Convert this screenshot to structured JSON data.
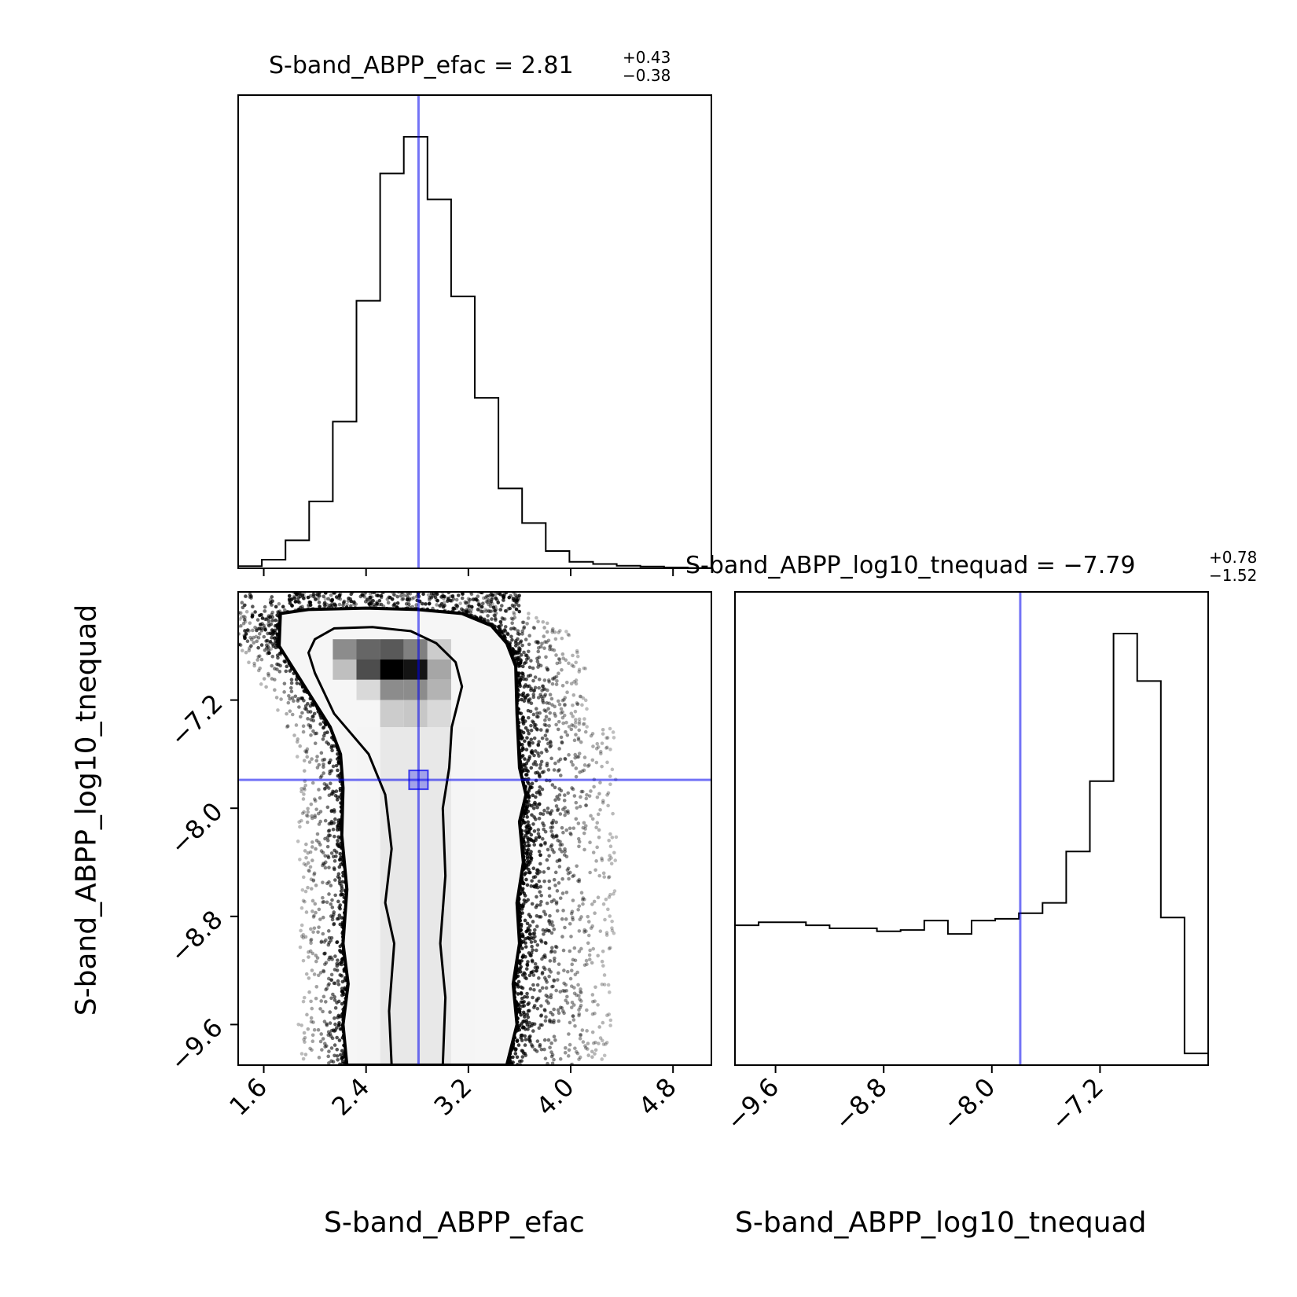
{
  "chart_data": {
    "type": "corner",
    "parameters": [
      "S-band_ABPP_efac",
      "S-band_ABPP_log10_tnequad"
    ],
    "colors": {
      "truth": "#0000ee",
      "hist": "#000000"
    },
    "panels": [
      {
        "name": "S-band_ABPP_efac-marginal",
        "type": "histogram-step",
        "title": {
          "label": "S-band_ABPP_efac = 2.81",
          "upper": "+0.43",
          "lower": "−0.38"
        },
        "xlim": [
          1.4,
          5.1
        ],
        "truth": 2.81,
        "bin_edges": [
          1.4,
          1.585,
          1.77,
          1.955,
          2.14,
          2.325,
          2.51,
          2.695,
          2.88,
          3.065,
          3.25,
          3.435,
          3.62,
          3.805,
          3.99,
          4.175,
          4.36,
          4.545,
          4.73,
          4.915,
          5.1
        ],
        "counts": [
          5,
          20,
          65,
          155,
          340,
          620,
          915,
          1000,
          855,
          630,
          395,
          185,
          105,
          40,
          15,
          10,
          6,
          4,
          2,
          1
        ]
      },
      {
        "name": "S-band_ABPP_log10_tnequad-marginal",
        "type": "histogram-step",
        "title": {
          "label": "S-band_ABPP_log10_tnequad = −7.79",
          "upper": "+0.78",
          "lower": "−1.52"
        },
        "xlim": [
          -9.9,
          -6.4
        ],
        "xticks": [
          -9.6,
          -8.8,
          -8.0,
          -7.2
        ],
        "xticklabels": [
          "−9.6",
          "−8.8",
          "−8.0",
          "−7.2"
        ],
        "xlabel": "S-band_ABPP_log10_tnequad",
        "truth": -7.79,
        "bin_edges": [
          -9.9,
          -9.725,
          -9.55,
          -9.375,
          -9.2,
          -9.025,
          -8.85,
          -8.675,
          -8.5,
          -8.325,
          -8.15,
          -7.975,
          -7.8,
          -7.625,
          -7.45,
          -7.275,
          -7.1,
          -6.925,
          -6.75,
          -6.575,
          -6.4
        ],
        "counts": [
          324,
          331,
          331,
          324,
          317,
          317,
          310,
          313,
          335,
          304,
          335,
          339,
          352,
          376,
          495,
          658,
          1000,
          890,
          342,
          27
        ]
      },
      {
        "name": "joint-2d",
        "type": "2d-density",
        "xlim": [
          1.4,
          5.1
        ],
        "ylim": [
          -9.9,
          -6.4
        ],
        "xticks": [
          1.6,
          2.4,
          3.2,
          4.0,
          4.8
        ],
        "xticklabels": [
          "1.6",
          "2.4",
          "3.2",
          "4.0",
          "4.8"
        ],
        "yticks": [
          -9.6,
          -8.8,
          -8.0,
          -7.2
        ],
        "yticklabels": [
          "−9.6",
          "−8.8",
          "−8.0",
          "−7.2"
        ],
        "xlabel": "S-band_ABPP_efac",
        "ylabel": "S-band_ABPP_log10_tnequad",
        "truth": [
          2.81,
          -7.79
        ],
        "contour_outer": [
          [
            1.73,
            -6.56
          ],
          [
            1.95,
            -6.53
          ],
          [
            2.4,
            -6.52
          ],
          [
            2.8,
            -6.53
          ],
          [
            3.15,
            -6.56
          ],
          [
            3.38,
            -6.65
          ],
          [
            3.5,
            -6.78
          ],
          [
            3.57,
            -6.95
          ],
          [
            3.58,
            -7.3
          ],
          [
            3.6,
            -7.7
          ],
          [
            3.65,
            -7.9
          ],
          [
            3.6,
            -8.1
          ],
          [
            3.63,
            -8.4
          ],
          [
            3.58,
            -8.7
          ],
          [
            3.6,
            -9.0
          ],
          [
            3.55,
            -9.3
          ],
          [
            3.58,
            -9.6
          ],
          [
            3.5,
            -9.9
          ],
          [
            2.25,
            -9.9
          ],
          [
            2.22,
            -9.6
          ],
          [
            2.26,
            -9.3
          ],
          [
            2.22,
            -9.0
          ],
          [
            2.25,
            -8.6
          ],
          [
            2.21,
            -8.2
          ],
          [
            2.22,
            -7.85
          ],
          [
            2.2,
            -7.6
          ],
          [
            2.12,
            -7.4
          ],
          [
            1.92,
            -7.1
          ],
          [
            1.72,
            -6.8
          ]
        ],
        "contour_inner": [
          [
            2.0,
            -6.75
          ],
          [
            2.15,
            -6.67
          ],
          [
            2.45,
            -6.66
          ],
          [
            2.75,
            -6.69
          ],
          [
            2.95,
            -6.78
          ],
          [
            3.1,
            -6.92
          ],
          [
            3.15,
            -7.1
          ],
          [
            3.07,
            -7.4
          ],
          [
            3.05,
            -7.7
          ],
          [
            3.0,
            -8.0
          ],
          [
            3.02,
            -8.5
          ],
          [
            2.98,
            -9.0
          ],
          [
            3.02,
            -9.4
          ],
          [
            3.0,
            -9.9
          ],
          [
            2.6,
            -9.9
          ],
          [
            2.58,
            -9.5
          ],
          [
            2.62,
            -9.0
          ],
          [
            2.55,
            -8.7
          ],
          [
            2.6,
            -8.3
          ],
          [
            2.55,
            -7.9
          ],
          [
            2.42,
            -7.6
          ],
          [
            2.15,
            -7.3
          ],
          [
            2.0,
            -7.0
          ],
          [
            1.95,
            -6.85
          ]
        ],
        "density_bins": [
          {
            "x0": 2.14,
            "x1": 2.325,
            "y0": -6.9,
            "y1": -6.75,
            "level": 0.45
          },
          {
            "x0": 2.325,
            "x1": 2.51,
            "y0": -6.9,
            "y1": -6.75,
            "level": 0.6
          },
          {
            "x0": 2.51,
            "x1": 2.695,
            "y0": -6.9,
            "y1": -6.75,
            "level": 0.65
          },
          {
            "x0": 2.695,
            "x1": 2.88,
            "y0": -6.9,
            "y1": -6.75,
            "level": 0.5
          },
          {
            "x0": 2.88,
            "x1": 3.065,
            "y0": -6.9,
            "y1": -6.75,
            "level": 0.2
          },
          {
            "x0": 2.325,
            "x1": 2.51,
            "y0": -7.05,
            "y1": -6.9,
            "level": 0.7
          },
          {
            "x0": 2.51,
            "x1": 2.695,
            "y0": -7.05,
            "y1": -6.9,
            "level": 1.0
          },
          {
            "x0": 2.695,
            "x1": 2.88,
            "y0": -7.05,
            "y1": -6.9,
            "level": 0.92
          },
          {
            "x0": 2.88,
            "x1": 3.065,
            "y0": -7.05,
            "y1": -6.9,
            "level": 0.35
          },
          {
            "x0": 2.14,
            "x1": 2.325,
            "y0": -7.05,
            "y1": -6.9,
            "level": 0.25
          },
          {
            "x0": 2.51,
            "x1": 2.695,
            "y0": -7.2,
            "y1": -7.05,
            "level": 0.45
          },
          {
            "x0": 2.695,
            "x1": 2.88,
            "y0": -7.2,
            "y1": -7.05,
            "level": 0.45
          },
          {
            "x0": 2.88,
            "x1": 3.065,
            "y0": -7.2,
            "y1": -7.05,
            "level": 0.3
          },
          {
            "x0": 2.325,
            "x1": 2.51,
            "y0": -7.2,
            "y1": -7.05,
            "level": 0.15
          },
          {
            "x0": 2.51,
            "x1": 2.695,
            "y0": -7.4,
            "y1": -7.2,
            "level": 0.2
          },
          {
            "x0": 2.695,
            "x1": 2.88,
            "y0": -7.4,
            "y1": -7.2,
            "level": 0.22
          },
          {
            "x0": 2.88,
            "x1": 3.065,
            "y0": -7.4,
            "y1": -7.2,
            "level": 0.15
          },
          {
            "x0": 2.51,
            "x1": 3.065,
            "y0": -9.9,
            "y1": -7.4,
            "level": 0.09
          },
          {
            "x0": 2.325,
            "x1": 2.51,
            "y0": -9.9,
            "y1": -7.4,
            "level": 0.04
          },
          {
            "x0": 3.065,
            "x1": 3.25,
            "y0": -9.9,
            "y1": -7.4,
            "level": 0.04
          }
        ]
      }
    ]
  }
}
